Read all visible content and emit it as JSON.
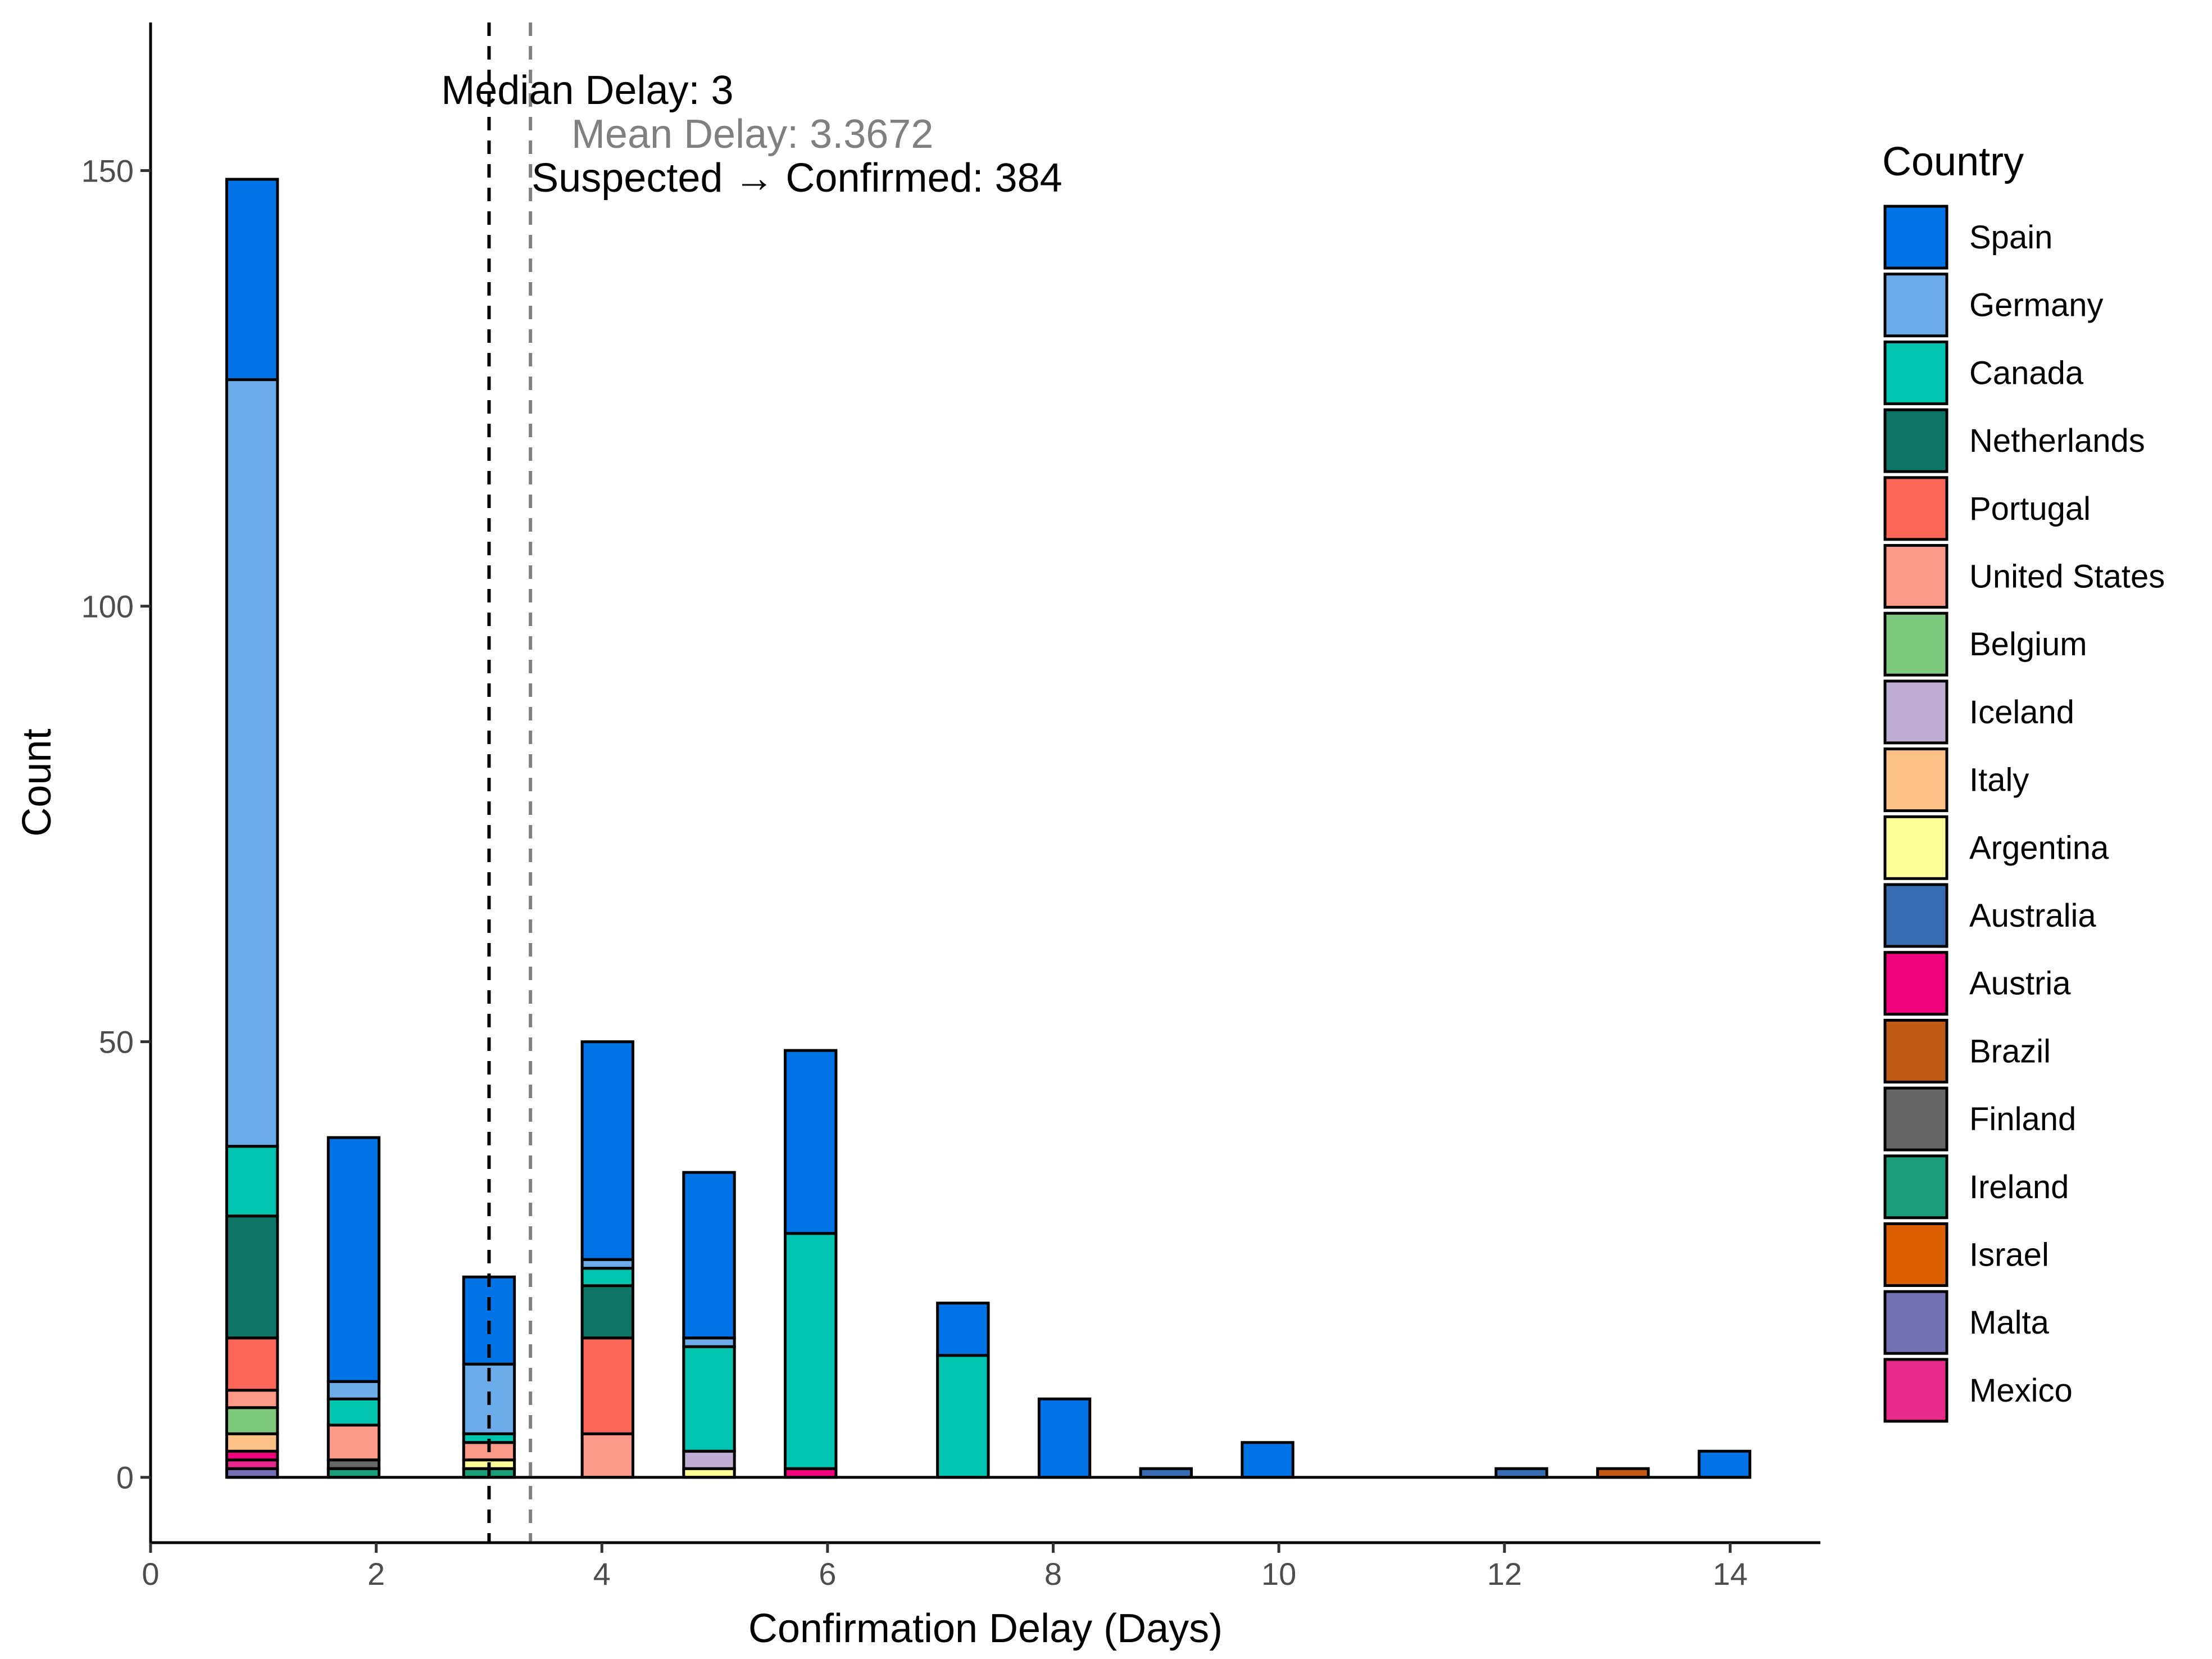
{
  "chart_data": {
    "type": "bar",
    "stacked": true,
    "xlabel": "Confirmation Delay (Days)",
    "ylabel": "Count",
    "xlim": [
      0,
      14.8
    ],
    "ylim": [
      -7.5,
      167
    ],
    "x_ticks": [
      0,
      2,
      4,
      6,
      8,
      10,
      12,
      14
    ],
    "y_ticks": [
      0,
      50,
      100,
      150
    ],
    "grid": false,
    "bar_width": 0.45,
    "legend": {
      "title": "Country",
      "position": "right",
      "entries": [
        {
          "name": "Spain",
          "color": "#0073E6"
        },
        {
          "name": "Germany",
          "color": "#6CACE8"
        },
        {
          "name": "Canada",
          "color": "#00C4B0"
        },
        {
          "name": "Netherlands",
          "color": "#0E7566"
        },
        {
          "name": "Portugal",
          "color": "#FC6656"
        },
        {
          "name": "United States",
          "color": "#FB9A88"
        },
        {
          "name": "Belgium",
          "color": "#7FC97F"
        },
        {
          "name": "Iceland",
          "color": "#BEAED4"
        },
        {
          "name": "Italy",
          "color": "#FDC086"
        },
        {
          "name": "Argentina",
          "color": "#FFFF99"
        },
        {
          "name": "Australia",
          "color": "#386CB0"
        },
        {
          "name": "Austria",
          "color": "#F0027F"
        },
        {
          "name": "Brazil",
          "color": "#BF5B17"
        },
        {
          "name": "Finland",
          "color": "#666666"
        },
        {
          "name": "Ireland",
          "color": "#1B9E77"
        },
        {
          "name": "Israel",
          "color": "#D95F02"
        },
        {
          "name": "Malta",
          "color": "#7570B3"
        },
        {
          "name": "Mexico",
          "color": "#E7298A"
        }
      ]
    },
    "bars": [
      {
        "x": 0.9,
        "segments": [
          {
            "country": "Malta",
            "value": 1
          },
          {
            "country": "Mexico",
            "value": 1
          },
          {
            "country": "Austria",
            "value": 1
          },
          {
            "country": "Italy",
            "value": 2
          },
          {
            "country": "Belgium",
            "value": 3
          },
          {
            "country": "United States",
            "value": 2
          },
          {
            "country": "Portugal",
            "value": 6
          },
          {
            "country": "Netherlands",
            "value": 14
          },
          {
            "country": "Canada",
            "value": 8
          },
          {
            "country": "Germany",
            "value": 88
          },
          {
            "country": "Spain",
            "value": 23
          }
        ]
      },
      {
        "x": 1.8,
        "segments": [
          {
            "country": "Ireland",
            "value": 1
          },
          {
            "country": "Finland",
            "value": 1
          },
          {
            "country": "United States",
            "value": 4
          },
          {
            "country": "Canada",
            "value": 3
          },
          {
            "country": "Germany",
            "value": 2
          },
          {
            "country": "Spain",
            "value": 28
          }
        ]
      },
      {
        "x": 3.0,
        "segments": [
          {
            "country": "Ireland",
            "value": 1
          },
          {
            "country": "Argentina",
            "value": 1
          },
          {
            "country": "United States",
            "value": 2
          },
          {
            "country": "Canada",
            "value": 1
          },
          {
            "country": "Germany",
            "value": 8
          },
          {
            "country": "Spain",
            "value": 10
          }
        ]
      },
      {
        "x": 4.05,
        "segments": [
          {
            "country": "United States",
            "value": 5
          },
          {
            "country": "Portugal",
            "value": 11
          },
          {
            "country": "Netherlands",
            "value": 6
          },
          {
            "country": "Canada",
            "value": 2
          },
          {
            "country": "Germany",
            "value": 1
          },
          {
            "country": "Spain",
            "value": 25
          }
        ]
      },
      {
        "x": 4.95,
        "segments": [
          {
            "country": "Argentina",
            "value": 1
          },
          {
            "country": "Iceland",
            "value": 2
          },
          {
            "country": "Canada",
            "value": 12
          },
          {
            "country": "Germany",
            "value": 1
          },
          {
            "country": "Spain",
            "value": 19
          }
        ]
      },
      {
        "x": 5.85,
        "segments": [
          {
            "country": "Austria",
            "value": 1
          },
          {
            "country": "Canada",
            "value": 27
          },
          {
            "country": "Spain",
            "value": 21
          }
        ]
      },
      {
        "x": 7.2,
        "segments": [
          {
            "country": "Canada",
            "value": 14
          },
          {
            "country": "Spain",
            "value": 6
          }
        ]
      },
      {
        "x": 8.1,
        "segments": [
          {
            "country": "Spain",
            "value": 9
          }
        ]
      },
      {
        "x": 9.0,
        "segments": [
          {
            "country": "Australia",
            "value": 1
          }
        ]
      },
      {
        "x": 9.9,
        "segments": [
          {
            "country": "Spain",
            "value": 4
          }
        ]
      },
      {
        "x": 12.15,
        "segments": [
          {
            "country": "Australia",
            "value": 1
          }
        ]
      },
      {
        "x": 13.05,
        "segments": [
          {
            "country": "Brazil",
            "value": 1
          }
        ]
      },
      {
        "x": 13.95,
        "segments": [
          {
            "country": "Spain",
            "value": 3
          }
        ]
      }
    ],
    "baseline": {
      "from": 0.68,
      "to": 14.18
    },
    "reference_lines": [
      {
        "x": 3,
        "style": "dashed",
        "color": "#000000"
      },
      {
        "x": 3.3672,
        "style": "dashed",
        "color": "#808080"
      }
    ],
    "annotations": [
      {
        "text": "Median Delay: 3",
        "color": "#000000"
      },
      {
        "text": "Mean Delay: 3.3672",
        "color": "#808080"
      },
      {
        "text": "Suspected → Confirmed: 384",
        "color": "#000000"
      }
    ]
  }
}
